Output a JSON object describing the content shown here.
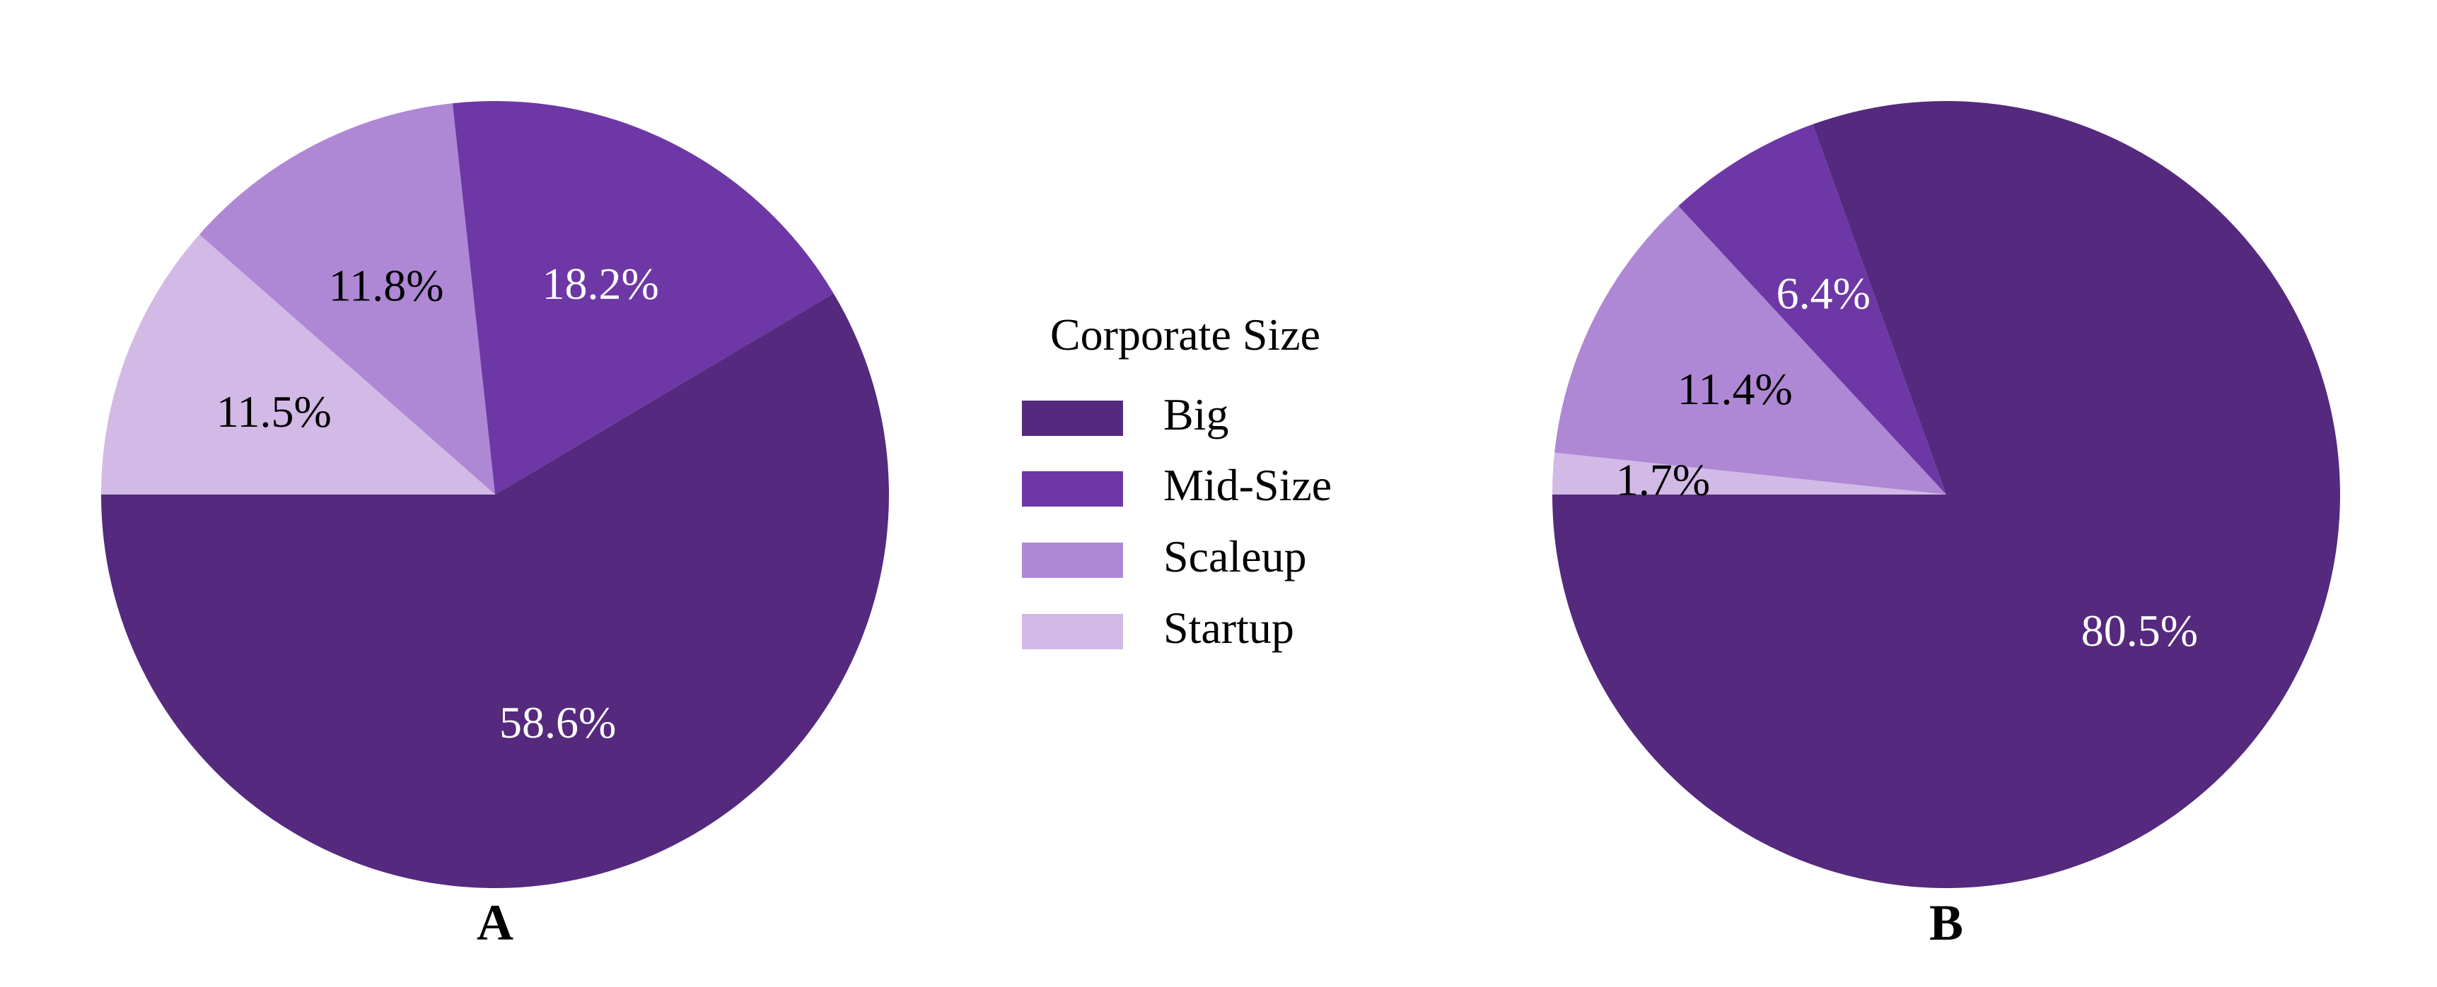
{
  "chart_data": [
    {
      "type": "pie",
      "panel_label": "A",
      "categories": [
        "Big",
        "Mid-Size",
        "Scaleup",
        "Startup"
      ],
      "values": [
        58.6,
        18.2,
        11.8,
        11.5
      ],
      "data_labels": [
        "58.6%",
        "18.2%",
        "11.8%",
        "11.5%"
      ],
      "start_angle_deg": 180,
      "direction": "counterclockwise",
      "label_colors": [
        "#ffffff",
        "#ffffff",
        "#000000",
        "#000000"
      ]
    },
    {
      "type": "pie",
      "panel_label": "B",
      "categories": [
        "Big",
        "Mid-Size",
        "Scaleup",
        "Startup"
      ],
      "values": [
        80.5,
        6.4,
        11.4,
        1.7
      ],
      "data_labels": [
        "80.5%",
        "6.4%",
        "11.4%",
        "1.7%"
      ],
      "start_angle_deg": 180,
      "direction": "counterclockwise",
      "label_colors": [
        "#ffffff",
        "#ffffff",
        "#000000",
        "#000000"
      ]
    }
  ],
  "legend": {
    "title": "Corporate Size",
    "entries": [
      "Big",
      "Mid-Size",
      "Scaleup",
      "Startup"
    ],
    "placement": "center"
  },
  "colors": {
    "Big": "#55297e",
    "Mid-Size": "#6e37a6",
    "Scaleup": "#ae88d5",
    "Startup": "#d2b9e6",
    "background": "#ffffff"
  }
}
